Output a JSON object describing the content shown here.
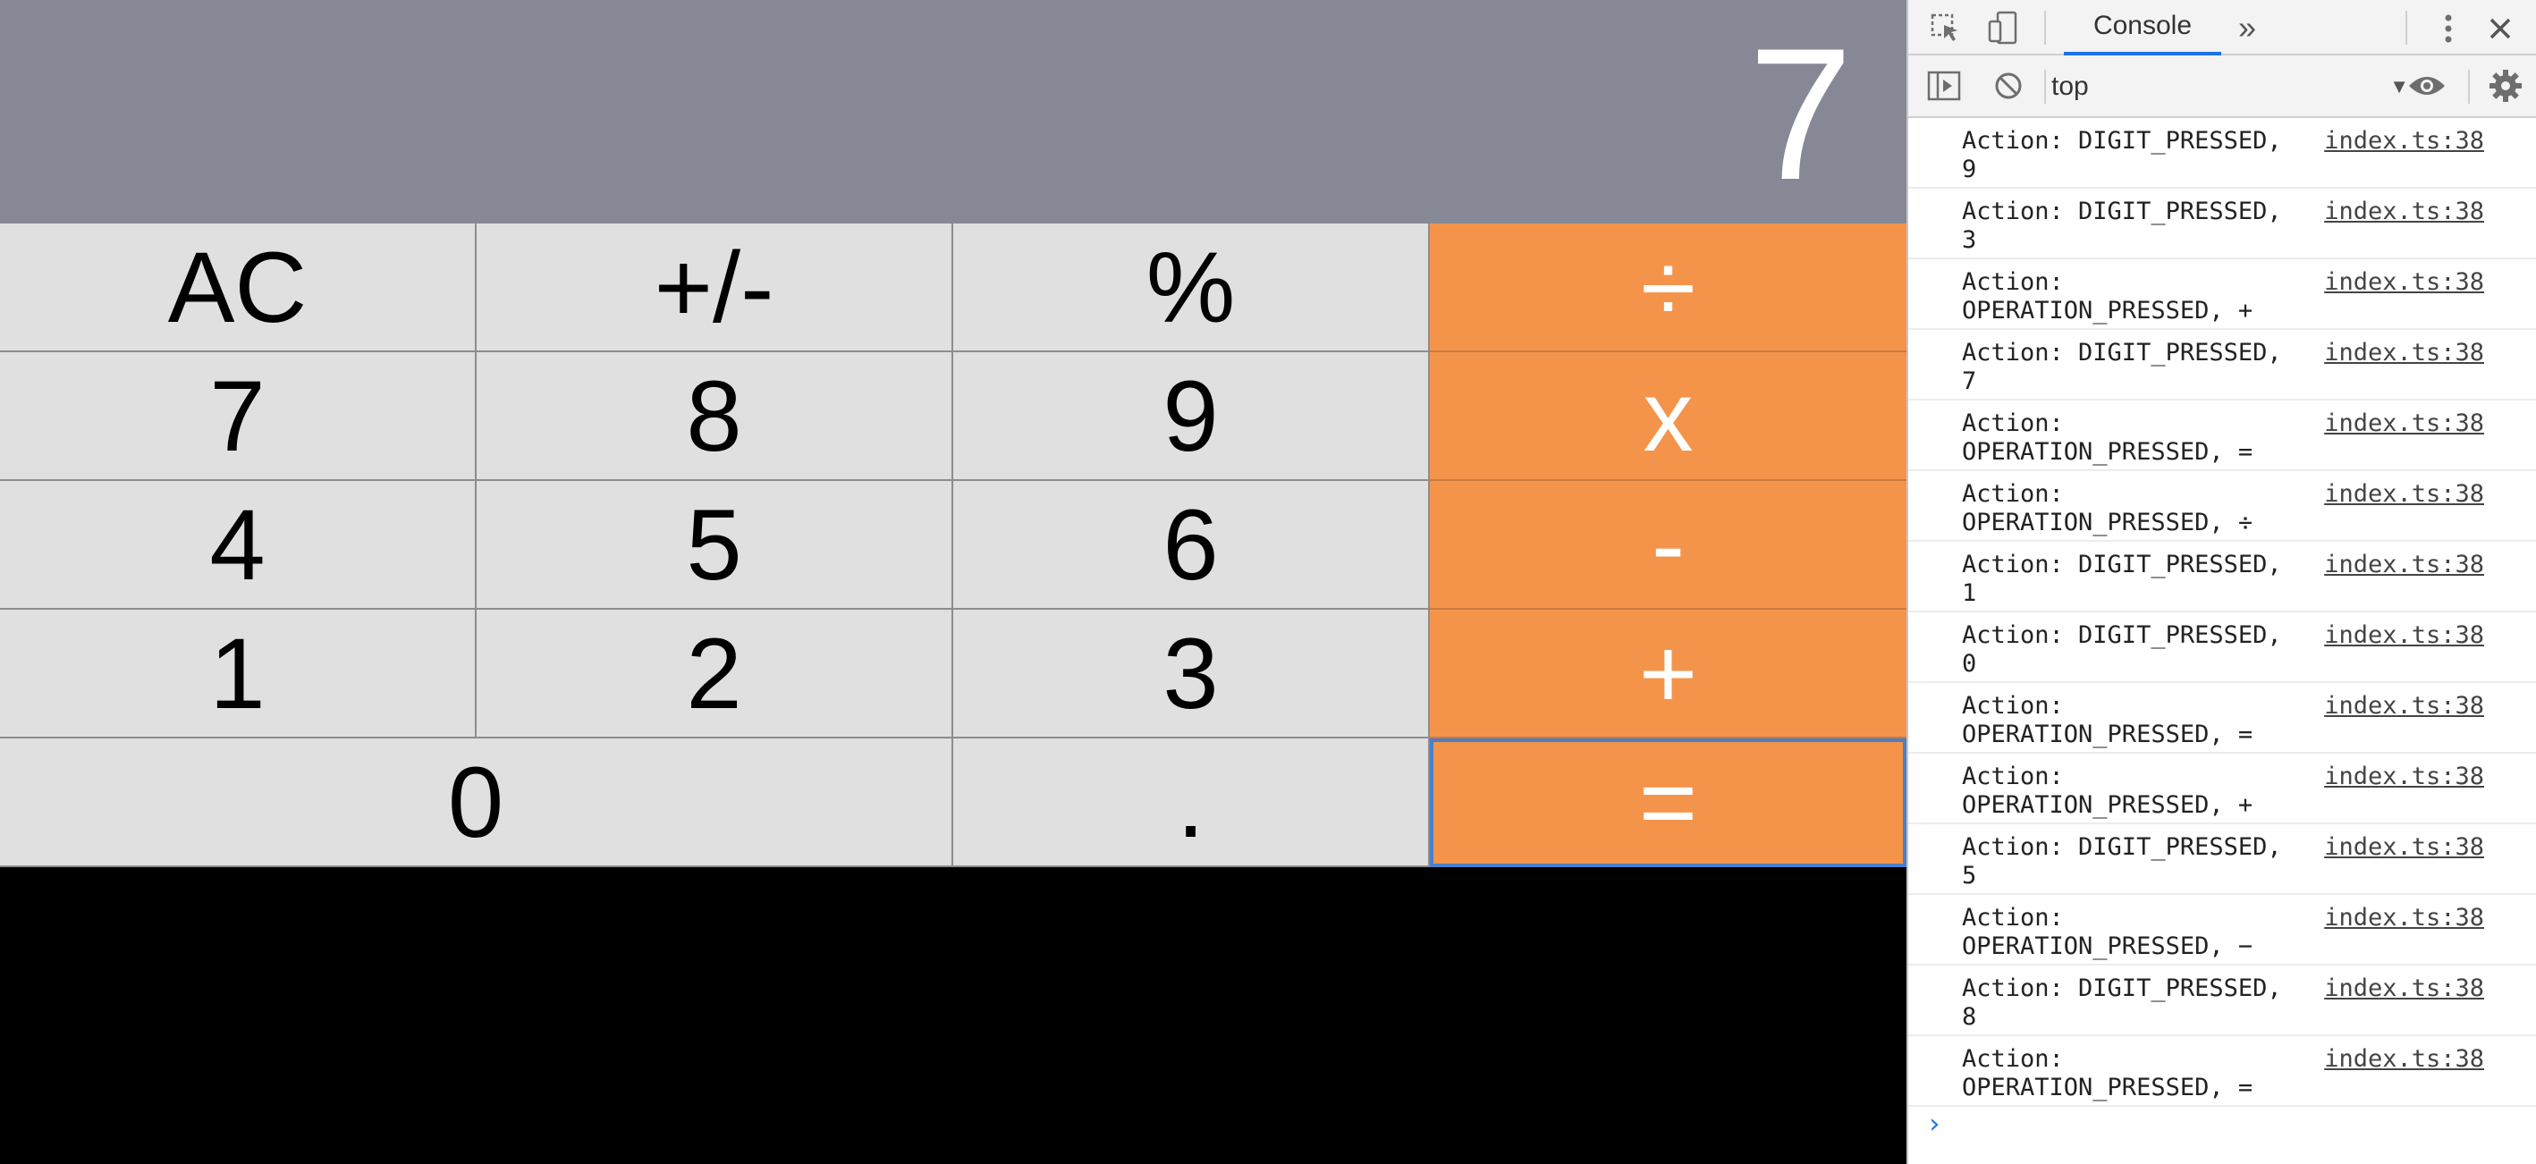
{
  "calculator": {
    "display": "7",
    "keys": {
      "ac": "AC",
      "sign": "+/-",
      "percent": "%",
      "divide": "÷",
      "seven": "7",
      "eight": "8",
      "nine": "9",
      "multiply": "x",
      "four": "4",
      "five": "5",
      "six": "6",
      "minus": "-",
      "one": "1",
      "two": "2",
      "three": "3",
      "plus": "+",
      "zero": "0",
      "dot": ".",
      "equals": "="
    },
    "colors": {
      "operator": "#f4944b",
      "display_bg": "#868896",
      "key_bg": "#e0e0e0"
    }
  },
  "devtools": {
    "tabs": {
      "console": "Console",
      "more": "»"
    },
    "toolbar": {
      "context": "top"
    },
    "icons": {
      "inspect": "inspect-element-icon",
      "device": "device-toggle-icon",
      "menu": "kebab-menu-icon",
      "close": "close-icon",
      "sidebar": "sidebar-toggle-icon",
      "clear": "clear-console-icon",
      "eye": "live-expression-icon",
      "settings": "gear-icon"
    },
    "logs": [
      {
        "line1": "Action: DIGIT_PRESSED,",
        "line2": "9",
        "src": "index.ts:38"
      },
      {
        "line1": "Action: DIGIT_PRESSED,",
        "line2": "3",
        "src": "index.ts:38"
      },
      {
        "line1": "Action:",
        "line2": "OPERATION_PRESSED, +",
        "src": "index.ts:38"
      },
      {
        "line1": "Action: DIGIT_PRESSED,",
        "line2": "7",
        "src": "index.ts:38"
      },
      {
        "line1": "Action:",
        "line2": "OPERATION_PRESSED, =",
        "src": "index.ts:38"
      },
      {
        "line1": "Action:",
        "line2": "OPERATION_PRESSED, ÷",
        "src": "index.ts:38"
      },
      {
        "line1": "Action: DIGIT_PRESSED,",
        "line2": "1",
        "src": "index.ts:38"
      },
      {
        "line1": "Action: DIGIT_PRESSED,",
        "line2": "0",
        "src": "index.ts:38"
      },
      {
        "line1": "Action:",
        "line2": "OPERATION_PRESSED, =",
        "src": "index.ts:38"
      },
      {
        "line1": "Action:",
        "line2": "OPERATION_PRESSED, +",
        "src": "index.ts:38"
      },
      {
        "line1": "Action: DIGIT_PRESSED,",
        "line2": "5",
        "src": "index.ts:38"
      },
      {
        "line1": "Action:",
        "line2": "OPERATION_PRESSED, −",
        "src": "index.ts:38"
      },
      {
        "line1": "Action: DIGIT_PRESSED,",
        "line2": "8",
        "src": "index.ts:38"
      },
      {
        "line1": "Action:",
        "line2": "OPERATION_PRESSED, =",
        "src": "index.ts:38"
      }
    ],
    "prompt": "›"
  }
}
